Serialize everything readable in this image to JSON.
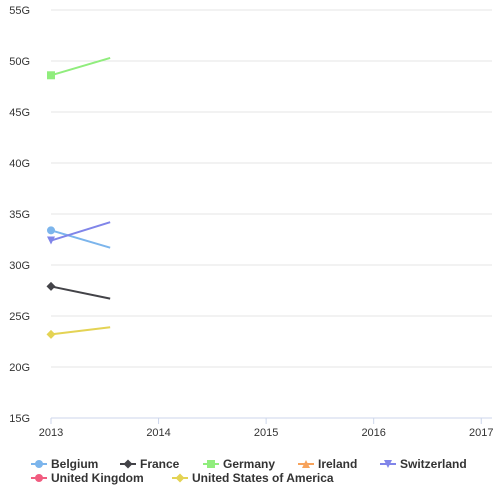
{
  "chart_data": {
    "type": "line",
    "title": "",
    "xlabel": "",
    "ylabel": "",
    "x_ticks": [
      "2013",
      "2014",
      "2015",
      "2016",
      "2017"
    ],
    "x_range": [
      2013,
      2017.1
    ],
    "y_ticks": [
      "15G",
      "20G",
      "25G",
      "30G",
      "35G",
      "40G",
      "45G",
      "50G",
      "55G"
    ],
    "ylim": [
      15,
      55
    ],
    "y_unit": "G",
    "grid": true,
    "legend_position": "bottom",
    "series": [
      {
        "name": "Belgium",
        "color": "#7cb5ec",
        "marker": "circle",
        "x": [
          2013,
          2013.55
        ],
        "y": [
          33.4,
          31.7
        ]
      },
      {
        "name": "France",
        "color": "#434348",
        "marker": "diamond",
        "x": [
          2013,
          2013.55
        ],
        "y": [
          27.9,
          26.7
        ]
      },
      {
        "name": "Germany",
        "color": "#90ed7d",
        "marker": "square",
        "x": [
          2013,
          2013.55
        ],
        "y": [
          48.6,
          50.3
        ]
      },
      {
        "name": "Ireland",
        "color": "#f7a35c",
        "marker": "triangle-up",
        "x": [],
        "y": []
      },
      {
        "name": "Switzerland",
        "color": "#8085e9",
        "marker": "triangle-down",
        "x": [
          2013,
          2013.55
        ],
        "y": [
          32.4,
          34.2
        ]
      },
      {
        "name": "United Kingdom",
        "color": "#f15c80",
        "marker": "circle",
        "x": [],
        "y": []
      },
      {
        "name": "United States of America",
        "color": "#e4d354",
        "marker": "diamond",
        "x": [
          2013,
          2013.55
        ],
        "y": [
          23.2,
          23.9
        ]
      }
    ]
  }
}
